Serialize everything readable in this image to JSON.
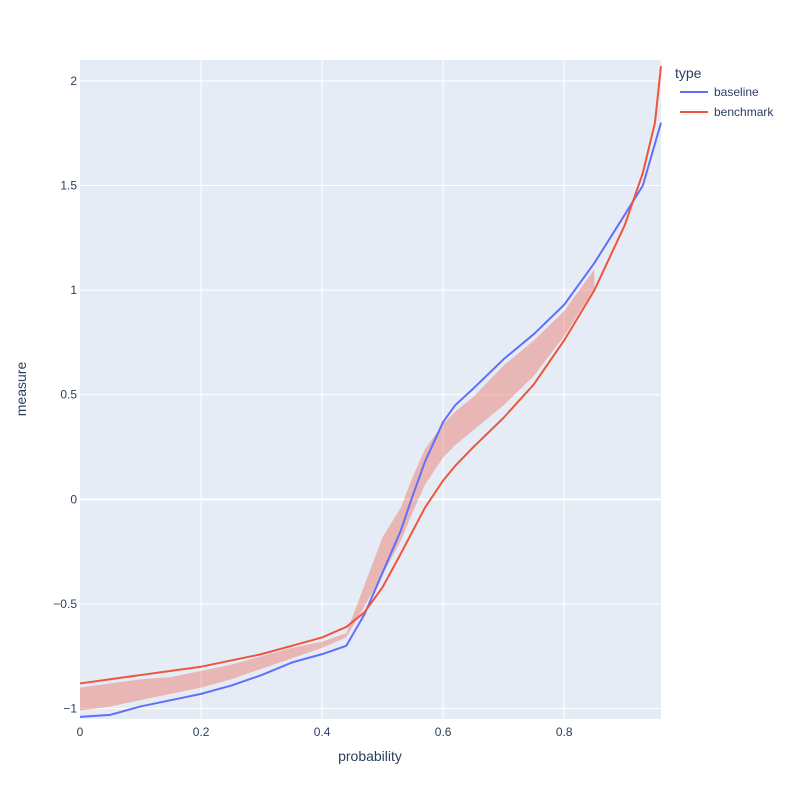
{
  "chart_data": {
    "type": "line",
    "xlabel": "probability",
    "ylabel": "measure",
    "xlim": [
      0,
      0.96
    ],
    "ylim": [
      -1.05,
      2.1
    ],
    "x_ticks": [
      0,
      0.2,
      0.4,
      0.6,
      0.8
    ],
    "x_tick_labels": [
      "0",
      "0.2",
      "0.4",
      "0.6",
      "0.8"
    ],
    "y_ticks": [
      -1,
      -0.5,
      0,
      0.5,
      1,
      1.5,
      2
    ],
    "y_tick_labels": [
      "−1",
      "−0.5",
      "0",
      "0.5",
      "1",
      "1.5",
      "2"
    ],
    "grid": true,
    "legend": {
      "title": "type",
      "placement": "top-right"
    },
    "series": [
      {
        "name": "baseline",
        "color": "#636efa",
        "x": [
          0,
          0.05,
          0.1,
          0.15,
          0.2,
          0.25,
          0.3,
          0.35,
          0.4,
          0.44,
          0.47,
          0.5,
          0.53,
          0.55,
          0.57,
          0.6,
          0.62,
          0.65,
          0.7,
          0.75,
          0.8,
          0.85,
          0.9,
          0.93,
          0.96
        ],
        "y": [
          -1.04,
          -1.03,
          -0.99,
          -0.96,
          -0.93,
          -0.89,
          -0.84,
          -0.78,
          -0.74,
          -0.7,
          -0.55,
          -0.35,
          -0.15,
          0.02,
          0.18,
          0.37,
          0.45,
          0.53,
          0.67,
          0.79,
          0.93,
          1.13,
          1.36,
          1.5,
          1.8
        ]
      },
      {
        "name": "benchmark",
        "color": "#ef553b",
        "x": [
          0,
          0.05,
          0.1,
          0.15,
          0.2,
          0.25,
          0.3,
          0.35,
          0.4,
          0.44,
          0.47,
          0.5,
          0.53,
          0.55,
          0.57,
          0.6,
          0.62,
          0.65,
          0.7,
          0.75,
          0.8,
          0.85,
          0.9,
          0.93,
          0.95,
          0.96
        ],
        "y": [
          -0.88,
          -0.86,
          -0.84,
          -0.82,
          -0.8,
          -0.77,
          -0.74,
          -0.7,
          -0.66,
          -0.61,
          -0.54,
          -0.42,
          -0.26,
          -0.15,
          -0.04,
          0.09,
          0.16,
          0.25,
          0.39,
          0.55,
          0.76,
          1.0,
          1.31,
          1.56,
          1.8,
          2.07
        ]
      }
    ],
    "band": {
      "color": "#ef553b",
      "x": [
        0,
        0.05,
        0.1,
        0.15,
        0.2,
        0.25,
        0.3,
        0.35,
        0.4,
        0.44,
        0.5,
        0.53,
        0.55,
        0.57,
        0.6,
        0.62,
        0.65,
        0.7,
        0.75,
        0.8,
        0.85
      ],
      "lower": [
        -1.01,
        -0.99,
        -0.96,
        -0.93,
        -0.9,
        -0.86,
        -0.81,
        -0.76,
        -0.71,
        -0.66,
        -0.36,
        -0.2,
        -0.06,
        0.07,
        0.2,
        0.26,
        0.33,
        0.45,
        0.59,
        0.78,
        1.01
      ],
      "upper": [
        -0.9,
        -0.88,
        -0.86,
        -0.85,
        -0.82,
        -0.79,
        -0.75,
        -0.71,
        -0.68,
        -0.64,
        -0.18,
        -0.04,
        0.11,
        0.24,
        0.36,
        0.42,
        0.49,
        0.64,
        0.76,
        0.9,
        1.1
      ]
    }
  }
}
